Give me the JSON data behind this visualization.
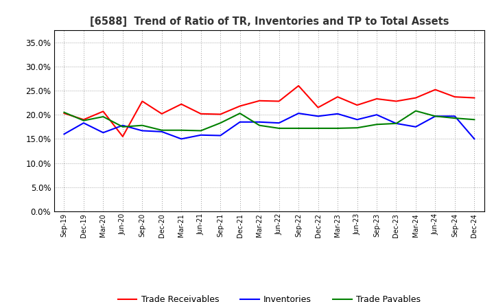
{
  "title": "[6588]  Trend of Ratio of TR, Inventories and TP to Total Assets",
  "x_labels": [
    "Sep-19",
    "Dec-19",
    "Mar-20",
    "Jun-20",
    "Sep-20",
    "Dec-20",
    "Mar-21",
    "Jun-21",
    "Sep-21",
    "Dec-21",
    "Mar-22",
    "Jun-22",
    "Sep-22",
    "Dec-22",
    "Mar-23",
    "Jun-23",
    "Sep-23",
    "Dec-23",
    "Mar-24",
    "Jun-24",
    "Sep-24",
    "Dec-24"
  ],
  "trade_receivables": [
    0.203,
    0.19,
    0.207,
    0.155,
    0.228,
    0.202,
    0.222,
    0.202,
    0.201,
    0.218,
    0.229,
    0.228,
    0.26,
    0.215,
    0.237,
    0.22,
    0.233,
    0.228,
    0.235,
    0.252,
    0.237,
    0.235
  ],
  "inventories": [
    0.16,
    0.183,
    0.163,
    0.178,
    0.167,
    0.165,
    0.15,
    0.158,
    0.157,
    0.185,
    0.185,
    0.183,
    0.203,
    0.197,
    0.202,
    0.19,
    0.2,
    0.182,
    0.175,
    0.197,
    0.197,
    0.15
  ],
  "trade_payables": [
    0.205,
    0.188,
    0.196,
    0.175,
    0.178,
    0.168,
    0.168,
    0.167,
    0.183,
    0.203,
    0.178,
    0.172,
    0.172,
    0.172,
    0.172,
    0.173,
    0.18,
    0.182,
    0.208,
    0.197,
    0.193,
    0.19
  ],
  "tr_color": "#ff0000",
  "inv_color": "#0000ff",
  "tp_color": "#008000",
  "ylim": [
    0.0,
    0.375
  ],
  "yticks": [
    0.0,
    0.05,
    0.1,
    0.15,
    0.2,
    0.25,
    0.3,
    0.35
  ],
  "background_color": "#ffffff",
  "grid_color": "#999999",
  "legend_labels": [
    "Trade Receivables",
    "Inventories",
    "Trade Payables"
  ]
}
